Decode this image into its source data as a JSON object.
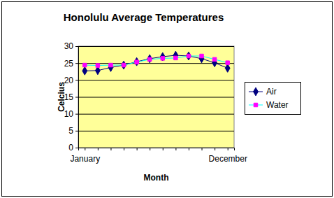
{
  "chart_data": {
    "type": "line",
    "title": "Honolulu Average Temperatures",
    "x_label": "Month",
    "y_label": "Celcius",
    "categories": [
      "January",
      null,
      null,
      null,
      null,
      null,
      null,
      null,
      null,
      null,
      null,
      "December"
    ],
    "series": [
      {
        "name": "Air",
        "color": "#000080",
        "marker": "diamond",
        "line_style": "solid",
        "values": [
          22.7,
          22.8,
          23.7,
          24.4,
          25.4,
          26.3,
          26.9,
          27.3,
          27.1,
          26.3,
          25.1,
          23.5
        ]
      },
      {
        "name": "Water",
        "color": "#00ffff",
        "marker": "square",
        "line_style": "solid",
        "values": [
          24.4,
          24.3,
          24.4,
          24.4,
          25.3,
          26.1,
          26.4,
          26.5,
          27.1,
          27.1,
          26.1,
          25.1
        ]
      }
    ],
    "ylim": [
      0,
      30
    ],
    "yticks": [
      0,
      5,
      10,
      15,
      20,
      25,
      30
    ],
    "grid": true,
    "legend": "right"
  }
}
